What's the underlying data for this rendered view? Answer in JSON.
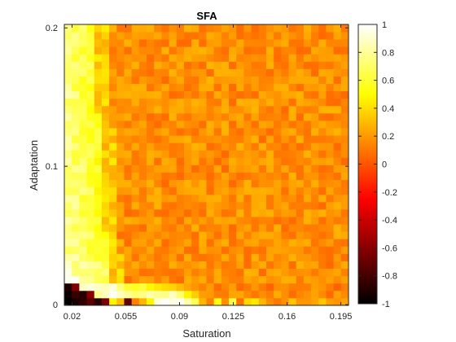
{
  "chart_data": {
    "type": "heatmap",
    "title": "SFA",
    "xlabel": "Saturation",
    "ylabel": "Adaptation",
    "xlim": [
      0.015,
      0.2
    ],
    "ylim": [
      -0.0005,
      0.2025
    ],
    "x_ticks": [
      0.02,
      0.055,
      0.09,
      0.125,
      0.16,
      0.195
    ],
    "x_tick_labels": [
      "0.02",
      "0.055",
      "0.09",
      "0.125",
      "0.16",
      "0.195"
    ],
    "y_ticks": [
      0,
      0.1,
      0.2
    ],
    "y_tick_labels": [
      "0",
      "0.1",
      "0.2"
    ],
    "colormap": "hot",
    "clim": [
      -1,
      1
    ],
    "colorbar_ticks": [
      -1,
      -0.8,
      -0.6,
      -0.4,
      -0.2,
      0,
      0.2,
      0.4,
      0.6,
      0.8,
      1
    ],
    "colorbar_tick_labels": [
      "-1",
      "-0.8",
      "-0.6",
      "-0.4",
      "-0.2",
      "0",
      "0.2",
      "0.4",
      "0.6",
      "0.8",
      "1"
    ],
    "grid": false,
    "n_cols": 38,
    "n_rows": 38,
    "x_centers_range": [
      0.0175,
      0.1975
    ],
    "y_centers_range": [
      0.0,
      0.2
    ],
    "values_description_rows_bottom_to_top": [
      [
        -1.0,
        -0.95,
        -0.9,
        -0.7,
        -0.85,
        -0.6,
        0.45,
        0.3,
        -0.75,
        0.1,
        0.3,
        0.5,
        0.95,
        1.0,
        0.9,
        1.0,
        0.85,
        0.7,
        0.3,
        0.15,
        0.5,
        0.2,
        0.6,
        0.1,
        0.35,
        0.4,
        0.3,
        0.15,
        0.1,
        0.2,
        0.3,
        0.2,
        0.15,
        0.2,
        0.3,
        0.25,
        0.15,
        0.2
      ],
      [
        -0.95,
        -0.8,
        -0.9,
        -0.6,
        0.8,
        0.9,
        0.95,
        0.9,
        0.8,
        0.7,
        0.75,
        0.85,
        0.8,
        0.75,
        0.9,
        0.7,
        0.5,
        0.35,
        0.25,
        0.2,
        0.15,
        0.1,
        0.2,
        0.25,
        0.15,
        0.1,
        0.2,
        0.15,
        0.25,
        0.2,
        0.1,
        0.15,
        0.2,
        0.25,
        0.15,
        0.1,
        0.2,
        0.15
      ],
      [
        -0.9,
        -0.6,
        0.85,
        0.95,
        0.9,
        0.85,
        0.9,
        0.7,
        0.6,
        0.55,
        0.6,
        0.5,
        0.45,
        0.4,
        0.35,
        0.3,
        0.25,
        0.2,
        0.15,
        0.2,
        0.1,
        0.15,
        0.2,
        0.1,
        0.15,
        0.2,
        0.1,
        0.05,
        0.15,
        0.2,
        0.1,
        0.15,
        0.1,
        0.2,
        0.15,
        0.1,
        0.05,
        0.15
      ]
    ]
  }
}
